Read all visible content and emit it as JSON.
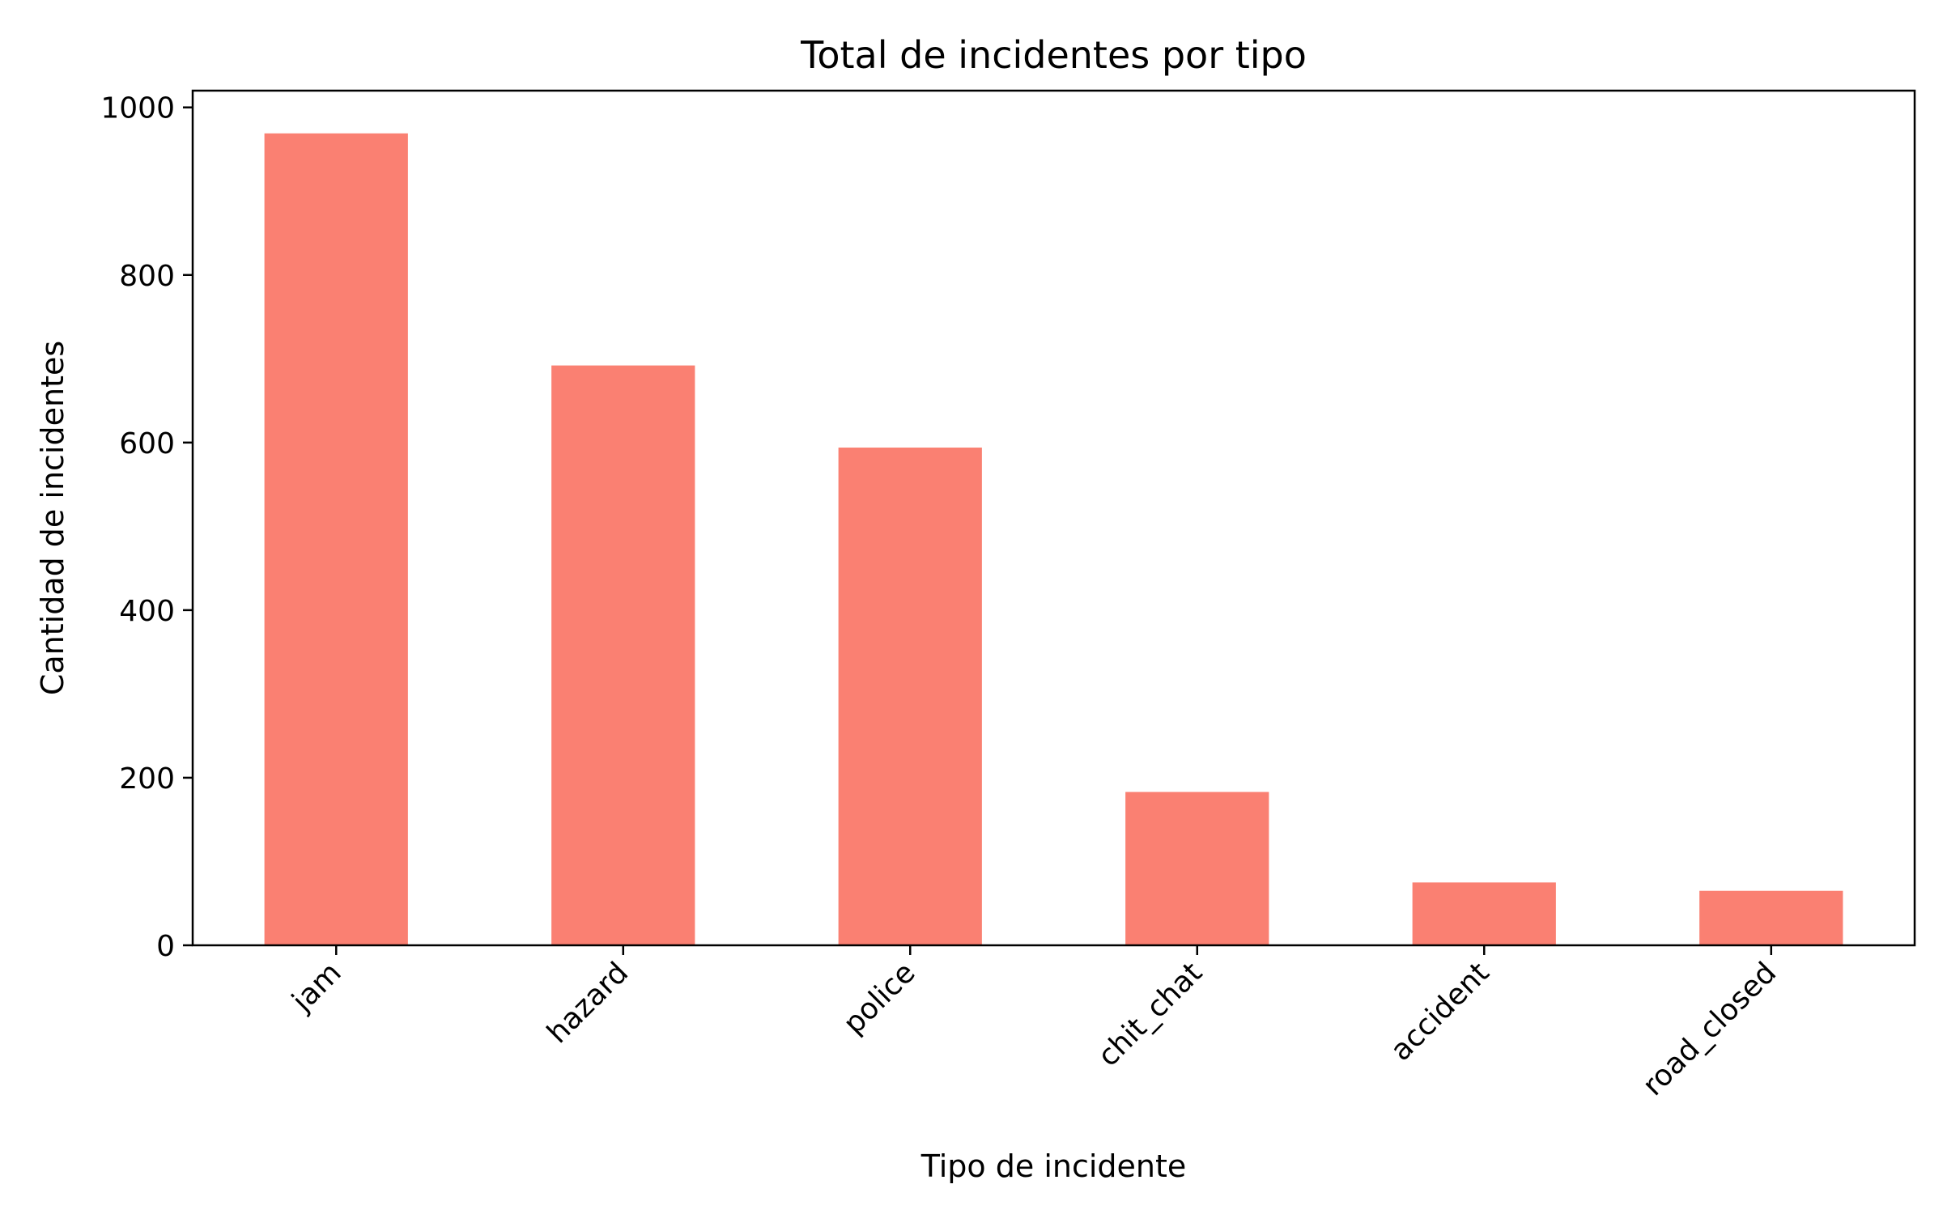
{
  "chart_data": {
    "type": "bar",
    "title": "Total de incidentes por tipo",
    "xlabel": "Tipo de incidente",
    "ylabel": "Cantidad de incidentes",
    "categories": [
      "jam",
      "hazard",
      "police",
      "chit_chat",
      "accident",
      "road_closed"
    ],
    "values": [
      969,
      692,
      594,
      183,
      75,
      65
    ],
    "ylim": [
      0,
      1020
    ],
    "yticks": [
      0,
      200,
      400,
      600,
      800,
      1000
    ],
    "grid": false,
    "bar_color": "#fa8072",
    "x_tick_rotation": -45
  }
}
